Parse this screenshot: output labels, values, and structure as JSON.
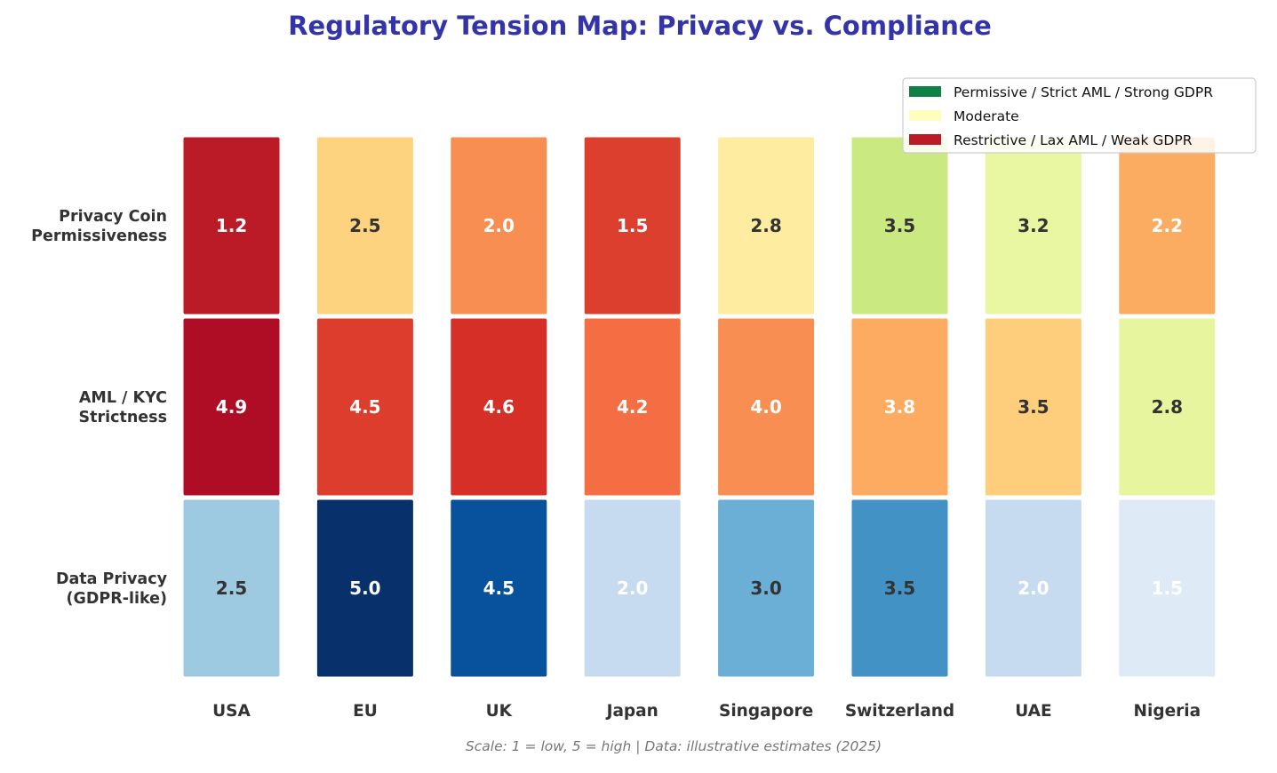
{
  "chart_data": {
    "type": "heatmap",
    "title": "Regulatory Tension Map: Privacy vs. Compliance",
    "caption": "Scale: 1 = low, 5 = high  |  Data: illustrative estimates (2025)",
    "columns": [
      "USA",
      "EU",
      "UK",
      "Japan",
      "Singapore",
      "Switzerland",
      "UAE",
      "Nigeria"
    ],
    "rows": [
      {
        "label_lines": [
          "Privacy Coin",
          "Permissiveness"
        ],
        "colormap": "RdYlGn",
        "values": [
          1.2,
          2.5,
          2.0,
          1.5,
          2.8,
          3.5,
          3.2,
          2.2
        ],
        "colors": [
          "#bb1a27",
          "#fdd380",
          "#f88e52",
          "#dd3f2f",
          "#feeda0",
          "#cbe981",
          "#e9f6a2",
          "#fcac60"
        ],
        "text_colors": [
          "#ffffff",
          "#333333",
          "#ffffff",
          "#ffffff",
          "#333333",
          "#333333",
          "#333333",
          "#ffffff"
        ]
      },
      {
        "label_lines": [
          "AML / KYC",
          "Strictness"
        ],
        "colormap": "RdYlGn_r",
        "values": [
          4.9,
          4.5,
          4.6,
          4.2,
          4.0,
          3.8,
          3.5,
          2.8
        ],
        "colors": [
          "#af0c26",
          "#dc3d2d",
          "#d62f27",
          "#f46d43",
          "#f88e52",
          "#fcab60",
          "#fece7c",
          "#e8f59f"
        ],
        "text_colors": [
          "#ffffff",
          "#ffffff",
          "#ffffff",
          "#ffffff",
          "#ffffff",
          "#ffffff",
          "#333333",
          "#333333"
        ]
      },
      {
        "label_lines": [
          "Data Privacy",
          "(GDPR-like)"
        ],
        "colormap": "Blues",
        "values": [
          2.5,
          5.0,
          4.5,
          2.0,
          3.0,
          3.5,
          2.0,
          1.5
        ],
        "colors": [
          "#9ecae1",
          "#08306b",
          "#08519c",
          "#c6dbef",
          "#6baed6",
          "#4292c6",
          "#c6dbef",
          "#deebf7"
        ],
        "text_colors": [
          "#333333",
          "#ffffff",
          "#ffffff",
          "#ffffff",
          "#333333",
          "#333333",
          "#ffffff",
          "#ffffff"
        ]
      }
    ],
    "scale": {
      "min": 1,
      "max": 5
    },
    "legend": {
      "position": "top-right",
      "entries": [
        {
          "label": "Permissive / Strict AML / Strong GDPR",
          "color": "#0e8245"
        },
        {
          "label": "Moderate",
          "color": "#fefebd"
        },
        {
          "label": "Restrictive / Lax AML / Weak GDPR",
          "color": "#bb1a27"
        }
      ]
    }
  }
}
